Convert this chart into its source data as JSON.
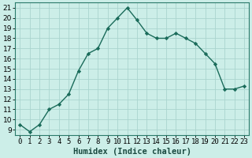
{
  "x": [
    0,
    1,
    2,
    3,
    4,
    5,
    6,
    7,
    8,
    9,
    10,
    11,
    12,
    13,
    14,
    15,
    16,
    17,
    18,
    19,
    20,
    21,
    22,
    23
  ],
  "y": [
    9.5,
    8.8,
    9.5,
    11.0,
    11.5,
    12.5,
    14.8,
    16.5,
    17.0,
    19.0,
    20.0,
    21.0,
    19.8,
    18.5,
    18.0,
    18.0,
    18.5,
    18.0,
    17.5,
    16.5,
    15.5,
    13.0,
    13.0,
    13.3
  ],
  "line_color": "#1a6b5a",
  "marker": "D",
  "marker_size": 2.2,
  "bg_color": "#cceee8",
  "grid_color": "#aad4ce",
  "xlabel": "Humidex (Indice chaleur)",
  "xlabel_fontsize": 7.5,
  "xlim": [
    -0.5,
    23.5
  ],
  "ylim": [
    8.5,
    21.5
  ],
  "yticks": [
    9,
    10,
    11,
    12,
    13,
    14,
    15,
    16,
    17,
    18,
    19,
    20,
    21
  ],
  "xtick_labels": [
    "0",
    "1",
    "2",
    "3",
    "4",
    "5",
    "6",
    "7",
    "8",
    "9",
    "10",
    "11",
    "12",
    "13",
    "14",
    "15",
    "16",
    "17",
    "18",
    "19",
    "20",
    "21",
    "22",
    "23"
  ],
  "tick_fontsize": 6.5,
  "line_width": 1.0,
  "spine_color": "#2a7a6a"
}
